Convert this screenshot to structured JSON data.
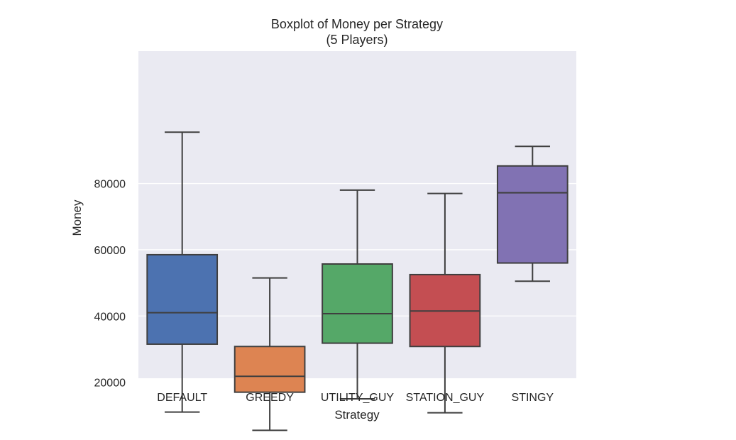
{
  "chart_data": {
    "type": "boxplot",
    "title": "Boxplot of Money per Strategy",
    "subtitle": "(5 Players)",
    "xlabel": "Strategy",
    "ylabel": "Money",
    "ylim": [
      0,
      100000
    ],
    "yticks": [
      "20000",
      "40000",
      "60000",
      "80000"
    ],
    "grid": true,
    "categories": [
      "DEFAULT",
      "GREEDY",
      "UTILITY_GUY",
      "STATION_GUY",
      "STINGY"
    ],
    "boxes": [
      {
        "name": "DEFAULT",
        "whisker_low": 11000,
        "q1": 31500,
        "median": 41000,
        "q3": 58500,
        "whisker_high": 95500,
        "color": "#4c72b0"
      },
      {
        "name": "GREEDY",
        "whisker_low": 5500,
        "q1": 17000,
        "median": 21800,
        "q3": 30800,
        "whisker_high": 51500,
        "color": "#dd8452"
      },
      {
        "name": "UTILITY_GUY",
        "whisker_low": 15000,
        "q1": 31800,
        "median": 40700,
        "q3": 55700,
        "whisker_high": 78000,
        "color": "#55a868"
      },
      {
        "name": "STATION_GUY",
        "whisker_low": 10800,
        "q1": 30800,
        "median": 41500,
        "q3": 52500,
        "whisker_high": 77000,
        "color": "#c44e52"
      },
      {
        "name": "STINGY",
        "whisker_low": 50500,
        "q1": 56000,
        "median": 77200,
        "q3": 85300,
        "whisker_high": 91200,
        "color": "#8172b3"
      }
    ],
    "colors": {
      "plot_bg": "#eaeaf2",
      "grid": "#ffffff",
      "line": "#3f3f3f"
    }
  }
}
